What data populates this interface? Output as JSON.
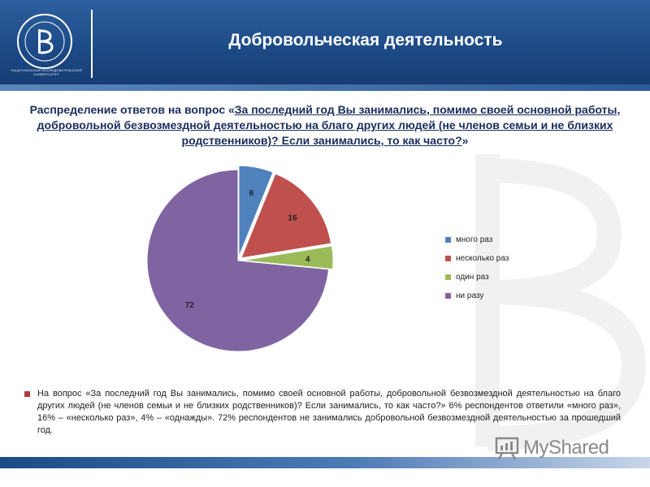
{
  "header": {
    "title": "Добровольческая деятельность",
    "logo_caption": "НАЦИОНАЛЬНЫЙ ИССЛЕДОВАТЕЛЬСКИЙ УНИВЕРСИТЕТ"
  },
  "question": {
    "prefix": "Распределение ответов на вопрос «",
    "text": "За последний год Вы занимались, помимо своей основной работы, добровольной безвозмездной деятельностью на благо других людей (не членов семьи и не близких родственников)? Если занимались, то как часто?",
    "suffix": "»"
  },
  "summary": "На вопрос «За последний год Вы занимались, помимо своей основной работы, добровольной безвозмездной деятельностью на благо других людей (не членов семьи и не близких родственников)? Если занимались, то как часто?» 6% респондентов ответили «много раз», 16% – «несколько раз», 4% – «однажды». 72% респондентов не занимались добровольной безвозмездной деятельностью за прошедший год.",
  "brand": {
    "name": "MyShared"
  },
  "colors": {
    "header": "#1d4a86",
    "title_text": "#1a2d5c",
    "bullet": "#b73a3a"
  },
  "chart_data": {
    "type": "pie",
    "categories": [
      "много раз",
      "несколько раз",
      "один раз",
      "ни разу"
    ],
    "values": [
      6,
      16,
      4,
      72
    ],
    "colors": [
      "#4f81bd",
      "#c0504d",
      "#9bbb59",
      "#8064a2"
    ],
    "exploded": [
      true,
      true,
      true,
      false
    ],
    "legend_position": "right"
  }
}
